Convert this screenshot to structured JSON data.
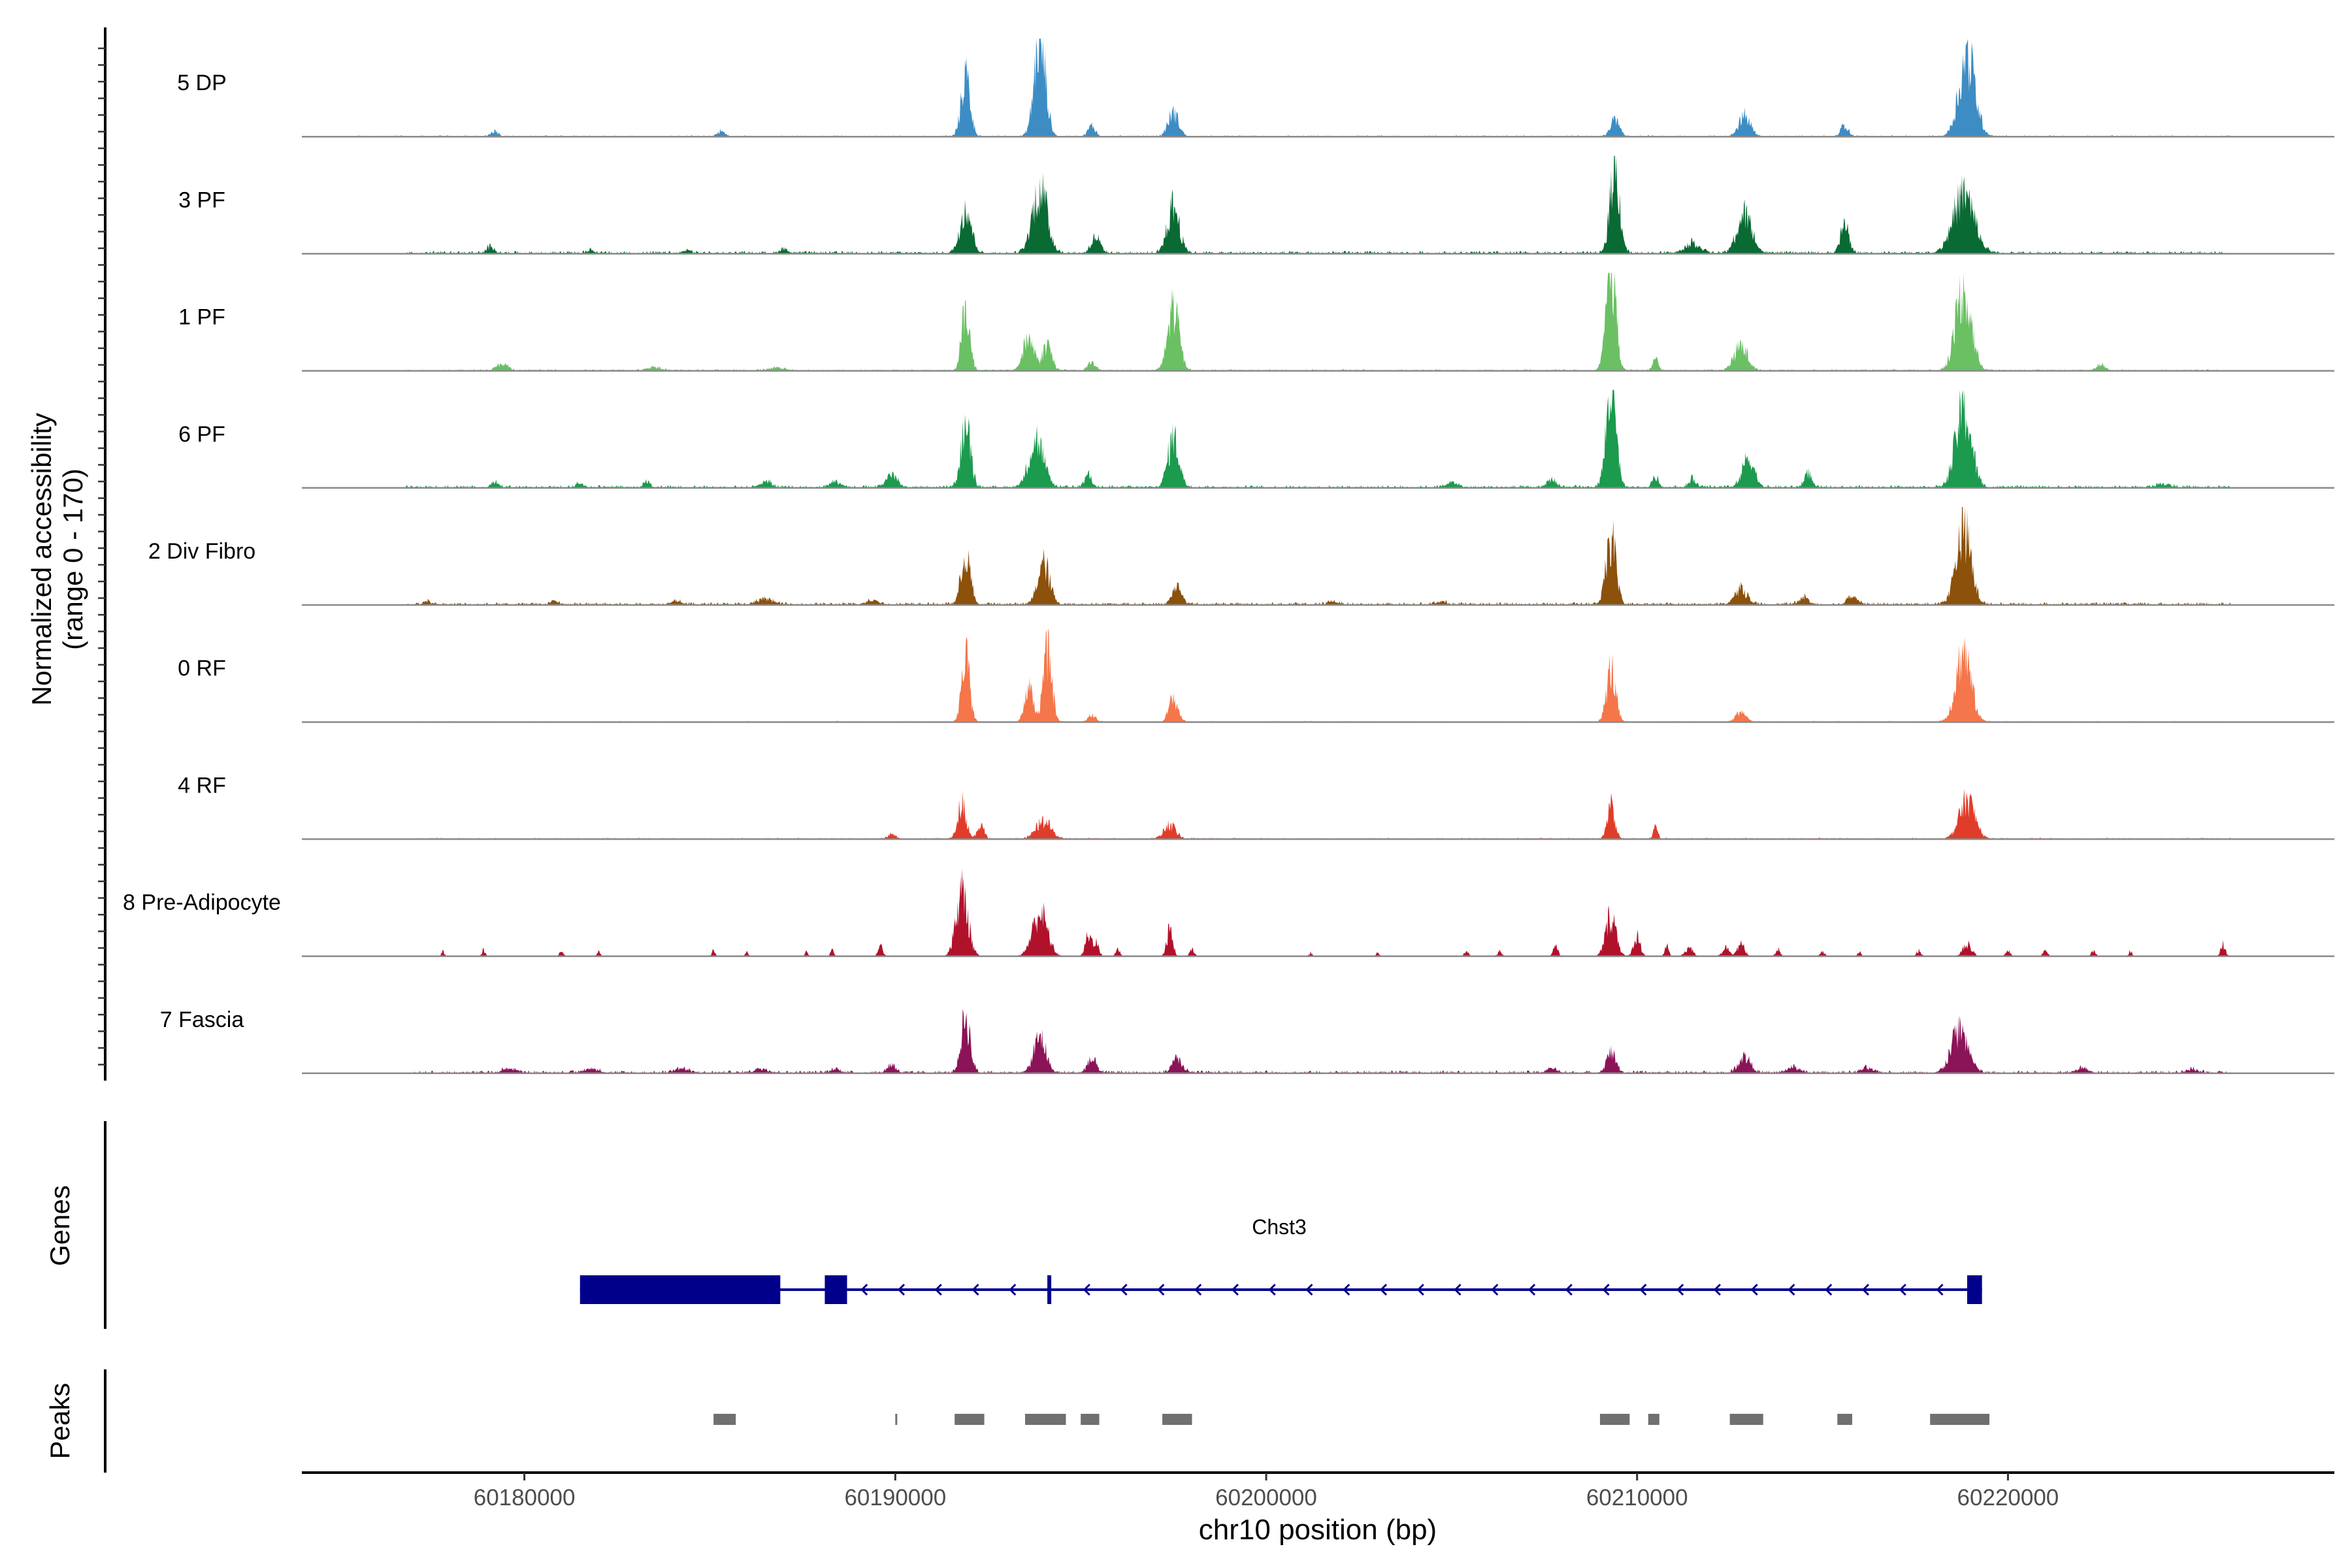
{
  "chart_data": {
    "type": "area",
    "title": "",
    "ylabel_line1": "Normalized accessibility",
    "ylabel_line2": "(range 0 - 170)",
    "ylim": [
      0,
      170
    ],
    "xlabel": "chr10 position (bp)",
    "xlim": [
      60174000,
      60228800
    ],
    "xticks": [
      60180000,
      60190000,
      60200000,
      60210000,
      60220000
    ],
    "xtick_labels": [
      "60180000",
      "60190000",
      "60200000",
      "60210000",
      "60220000"
    ],
    "tracks": [
      {
        "name": "5 DP",
        "color": "#3D8DC4",
        "peaks": [
          [
            60179200,
            10,
            100
          ],
          [
            60185300,
            9,
            100
          ],
          [
            60191900,
            105,
            120
          ],
          [
            60193900,
            170,
            150
          ],
          [
            60195300,
            18,
            100
          ],
          [
            60197500,
            40,
            140
          ],
          [
            60209400,
            28,
            120
          ],
          [
            60212900,
            34,
            160
          ],
          [
            60215600,
            20,
            100
          ],
          [
            60218900,
            135,
            220
          ]
        ],
        "noise": 2.5,
        "span": [
          60175500,
          60226000
        ]
      },
      {
        "name": "3 PF",
        "color": "#0A6A34",
        "peaks": [
          [
            60179100,
            12,
            100
          ],
          [
            60181800,
            6,
            100
          ],
          [
            60184400,
            5,
            100
          ],
          [
            60187000,
            8,
            100
          ],
          [
            60191900,
            80,
            150
          ],
          [
            60193900,
            110,
            200
          ],
          [
            60195400,
            28,
            120
          ],
          [
            60197500,
            80,
            160
          ],
          [
            60209400,
            150,
            130
          ],
          [
            60211500,
            18,
            200
          ],
          [
            60212900,
            65,
            200
          ],
          [
            60215600,
            50,
            110
          ],
          [
            60218800,
            100,
            280
          ]
        ],
        "noise": 5,
        "span": [
          60176800,
          60226000
        ]
      },
      {
        "name": "1 PF",
        "color": "#6BC064",
        "peaks": [
          [
            60179400,
            12,
            150
          ],
          [
            60183500,
            6,
            200
          ],
          [
            60186800,
            5,
            200
          ],
          [
            60191900,
            105,
            110
          ],
          [
            60193600,
            55,
            150
          ],
          [
            60194100,
            45,
            120
          ],
          [
            60195300,
            14,
            100
          ],
          [
            60197500,
            110,
            150
          ],
          [
            60209300,
            180,
            130
          ],
          [
            60210500,
            18,
            80
          ],
          [
            60212800,
            42,
            180
          ],
          [
            60218800,
            140,
            210
          ],
          [
            60222500,
            10,
            120
          ]
        ],
        "noise": 3,
        "span": [
          60176800,
          60226000
        ]
      },
      {
        "name": "6 PF",
        "color": "#1C9A4E",
        "peaks": [
          [
            60179200,
            10,
            100
          ],
          [
            60181500,
            8,
            100
          ],
          [
            60183300,
            10,
            80
          ],
          [
            60186500,
            10,
            150
          ],
          [
            60188400,
            10,
            150
          ],
          [
            60189900,
            22,
            150
          ],
          [
            60191900,
            105,
            130
          ],
          [
            60193800,
            80,
            200
          ],
          [
            60195200,
            22,
            100
          ],
          [
            60197500,
            85,
            150
          ],
          [
            60205000,
            8,
            150
          ],
          [
            60207700,
            14,
            120
          ],
          [
            60209300,
            170,
            130
          ],
          [
            60210500,
            18,
            80
          ],
          [
            60211500,
            14,
            100
          ],
          [
            60213000,
            50,
            160
          ],
          [
            60214600,
            24,
            100
          ],
          [
            60218800,
            135,
            210
          ],
          [
            60224200,
            6,
            200
          ]
        ],
        "noise": 5,
        "span": [
          60176800,
          60226000
        ]
      },
      {
        "name": "2 Div Fibro",
        "color": "#8C510A",
        "peaks": [
          [
            60177400,
            5,
            120
          ],
          [
            60180800,
            5,
            120
          ],
          [
            60184100,
            6,
            150
          ],
          [
            60186500,
            10,
            200
          ],
          [
            60189400,
            8,
            150
          ],
          [
            60191900,
            90,
            120
          ],
          [
            60194000,
            70,
            160
          ],
          [
            60197600,
            30,
            130
          ],
          [
            60201800,
            5,
            150
          ],
          [
            60204700,
            5,
            150
          ],
          [
            60209300,
            115,
            130
          ],
          [
            60212800,
            28,
            160
          ],
          [
            60214500,
            12,
            120
          ],
          [
            60215800,
            18,
            120
          ],
          [
            60218800,
            130,
            200
          ]
        ],
        "noise": 5,
        "span": [
          60176800,
          60226000
        ]
      },
      {
        "name": "0 RF",
        "color": "#F4764A",
        "peaks": [
          [
            60191900,
            105,
            110
          ],
          [
            60193600,
            60,
            110
          ],
          [
            60194100,
            115,
            120
          ],
          [
            60195300,
            12,
            100
          ],
          [
            60197500,
            40,
            120
          ],
          [
            60209300,
            90,
            120
          ],
          [
            60212800,
            18,
            130
          ],
          [
            60218800,
            120,
            200
          ]
        ],
        "noise": 2,
        "span": [
          60177000,
          60226000
        ]
      },
      {
        "name": "4 RF",
        "color": "#E03C2A",
        "peaks": [
          [
            60189900,
            9,
            100
          ],
          [
            60191800,
            65,
            110
          ],
          [
            60192300,
            25,
            90
          ],
          [
            60194000,
            30,
            200
          ],
          [
            60197400,
            24,
            160
          ],
          [
            60209300,
            60,
            100
          ],
          [
            60210500,
            20,
            60
          ],
          [
            60218900,
            65,
            210
          ]
        ],
        "noise": 2.5,
        "span": [
          60177000,
          60226000
        ]
      },
      {
        "name": "8 Pre-Adipocyte",
        "color": "#B0122C",
        "peaks": [
          [
            60177800,
            8,
            40
          ],
          [
            60178900,
            12,
            40
          ],
          [
            60181000,
            8,
            60
          ],
          [
            60182000,
            10,
            40
          ],
          [
            60185100,
            10,
            40
          ],
          [
            60186000,
            8,
            40
          ],
          [
            60187600,
            8,
            40
          ],
          [
            60188300,
            14,
            40
          ],
          [
            60189600,
            18,
            60
          ],
          [
            60191800,
            110,
            160
          ],
          [
            60193900,
            75,
            200
          ],
          [
            60195200,
            35,
            80
          ],
          [
            60195400,
            25,
            80
          ],
          [
            60196000,
            12,
            60
          ],
          [
            60197400,
            45,
            80
          ],
          [
            60198000,
            15,
            60
          ],
          [
            60201200,
            6,
            40
          ],
          [
            60203000,
            6,
            40
          ],
          [
            60205400,
            8,
            60
          ],
          [
            60206300,
            8,
            60
          ],
          [
            60207800,
            20,
            60
          ],
          [
            60209300,
            70,
            140
          ],
          [
            60210000,
            35,
            90
          ],
          [
            60210800,
            20,
            50
          ],
          [
            60211400,
            15,
            100
          ],
          [
            60212400,
            15,
            100
          ],
          [
            60212800,
            20,
            100
          ],
          [
            60213800,
            12,
            60
          ],
          [
            60215000,
            8,
            60
          ],
          [
            60216000,
            10,
            40
          ],
          [
            60217600,
            10,
            60
          ],
          [
            60218900,
            20,
            120
          ],
          [
            60220000,
            10,
            60
          ],
          [
            60221000,
            10,
            60
          ],
          [
            60222300,
            8,
            60
          ],
          [
            60223300,
            10,
            40
          ],
          [
            60225800,
            20,
            60
          ]
        ],
        "noise": 0,
        "span": [
          60177000,
          60226000
        ]
      },
      {
        "name": "7 Fascia",
        "color": "#8B1357",
        "peaks": [
          [
            60179600,
            7,
            200
          ],
          [
            60181800,
            7,
            200
          ],
          [
            60184200,
            7,
            200
          ],
          [
            60186400,
            7,
            200
          ],
          [
            60188400,
            6,
            150
          ],
          [
            60189900,
            14,
            120
          ],
          [
            60191900,
            95,
            120
          ],
          [
            60193900,
            60,
            160
          ],
          [
            60195300,
            22,
            120
          ],
          [
            60197600,
            22,
            140
          ],
          [
            60207700,
            7,
            150
          ],
          [
            60209300,
            35,
            120
          ],
          [
            60212900,
            28,
            160
          ],
          [
            60214200,
            10,
            150
          ],
          [
            60216200,
            8,
            150
          ],
          [
            60218700,
            75,
            220
          ],
          [
            60222000,
            10,
            120
          ],
          [
            60225000,
            6,
            150
          ]
        ],
        "noise": 5,
        "span": [
          60177000,
          60226000
        ]
      }
    ],
    "genes": {
      "label": "Genes",
      "name": "Chst3",
      "strand": "-",
      "start": 60181500,
      "end": 60219300,
      "exons": [
        [
          60181500,
          60186900
        ],
        [
          60188100,
          60188700
        ],
        [
          60194100,
          60194200
        ],
        [
          60218900,
          60219300
        ]
      ],
      "color": "#00008B"
    },
    "peaks_track": {
      "label": "Peaks",
      "color": "#707070",
      "regions": [
        [
          60185100,
          60185700
        ],
        [
          60190000,
          60190050
        ],
        [
          60191600,
          60192400
        ],
        [
          60193500,
          60194600
        ],
        [
          60195000,
          60195500
        ],
        [
          60197200,
          60198000
        ],
        [
          60209000,
          60209800
        ],
        [
          60210300,
          60210600
        ],
        [
          60212500,
          60213400
        ],
        [
          60215400,
          60215800
        ],
        [
          60217900,
          60219500
        ]
      ]
    }
  }
}
